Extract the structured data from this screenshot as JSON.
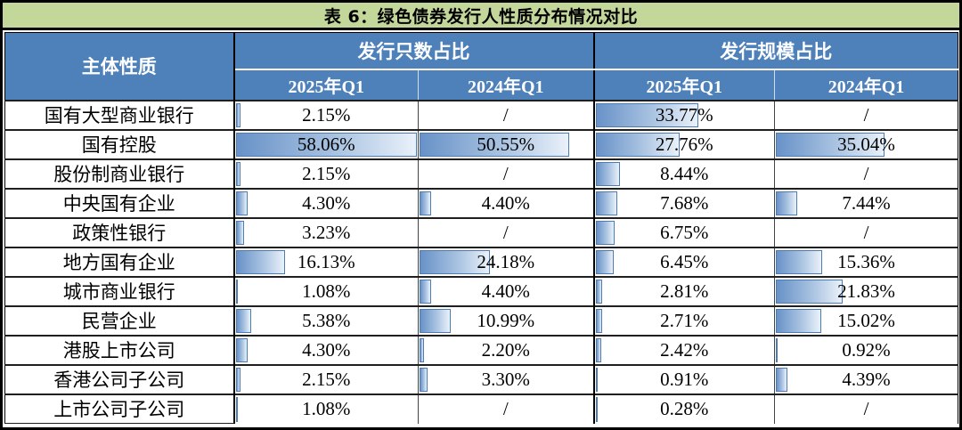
{
  "title": "表 6：绿色债券发行人性质分布情况对比",
  "colors": {
    "title_bg": "#c3d79a",
    "header_bg": "#4e80ba",
    "bar_start": "#6892c8",
    "bar_end": "#eaf1fa",
    "bar_border": "#4d7cb5"
  },
  "table": {
    "corner_header": "主体性质",
    "groups": [
      {
        "label": "发行只数占比",
        "columns": [
          "2025年Q1",
          "2024年Q1"
        ]
      },
      {
        "label": "发行规模占比",
        "columns": [
          "2025年Q1",
          "2024年Q1"
        ]
      }
    ],
    "bar_scale_max": 58.06,
    "null_display": "/",
    "rows": [
      {
        "label": "国有大型商业银行",
        "cells": [
          "2.15%",
          "/",
          "33.77%",
          "/"
        ]
      },
      {
        "label": "国有控股",
        "cells": [
          "58.06%",
          "50.55%",
          "27.76%",
          "35.04%"
        ]
      },
      {
        "label": "股份制商业银行",
        "cells": [
          "2.15%",
          "/",
          "8.44%",
          "/"
        ]
      },
      {
        "label": "中央国有企业",
        "cells": [
          "4.30%",
          "4.40%",
          "7.68%",
          "7.44%"
        ]
      },
      {
        "label": "政策性银行",
        "cells": [
          "3.23%",
          "/",
          "6.75%",
          "/"
        ]
      },
      {
        "label": "地方国有企业",
        "cells": [
          "16.13%",
          "24.18%",
          "6.45%",
          "15.36%"
        ]
      },
      {
        "label": "城市商业银行",
        "cells": [
          "1.08%",
          "4.40%",
          "2.81%",
          "21.83%"
        ]
      },
      {
        "label": "民营企业",
        "cells": [
          "5.38%",
          "10.99%",
          "2.71%",
          "15.02%"
        ]
      },
      {
        "label": "港股上市公司",
        "cells": [
          "4.30%",
          "2.20%",
          "2.42%",
          "0.92%"
        ]
      },
      {
        "label": "香港公司子公司",
        "cells": [
          "2.15%",
          "3.30%",
          "0.91%",
          "4.39%"
        ]
      },
      {
        "label": "上市公司子公司",
        "cells": [
          "1.08%",
          "/",
          "0.28%",
          "/"
        ]
      }
    ]
  },
  "chart_data": {
    "type": "table",
    "title": "表 6：绿色债券发行人性质分布情况对比",
    "row_header": "主体性质",
    "columns": [
      "发行只数占比 2025年Q1",
      "发行只数占比 2024年Q1",
      "发行规模占比 2025年Q1",
      "发行规模占比 2024年Q1"
    ],
    "categories": [
      "国有大型商业银行",
      "国有控股",
      "股份制商业银行",
      "中央国有企业",
      "政策性银行",
      "地方国有企业",
      "城市商业银行",
      "民营企业",
      "港股上市公司",
      "香港公司子公司",
      "上市公司子公司"
    ],
    "series": [
      {
        "name": "发行只数占比 2025年Q1",
        "values": [
          2.15,
          58.06,
          2.15,
          4.3,
          3.23,
          16.13,
          1.08,
          5.38,
          4.3,
          2.15,
          1.08
        ]
      },
      {
        "name": "发行只数占比 2024年Q1",
        "values": [
          null,
          50.55,
          null,
          4.4,
          null,
          24.18,
          4.4,
          10.99,
          2.2,
          3.3,
          null
        ]
      },
      {
        "name": "发行规模占比 2025年Q1",
        "values": [
          33.77,
          27.76,
          8.44,
          7.68,
          6.75,
          6.45,
          2.81,
          2.71,
          2.42,
          0.91,
          0.28
        ]
      },
      {
        "name": "发行规模占比 2024年Q1",
        "values": [
          null,
          35.04,
          null,
          7.44,
          null,
          15.36,
          21.83,
          15.02,
          0.92,
          4.39,
          null
        ]
      }
    ],
    "unit": "%",
    "bar_scale_max": 58.06,
    "null_display": "/",
    "notes": "in-cell data bars, width proportional to value / 58.06"
  }
}
